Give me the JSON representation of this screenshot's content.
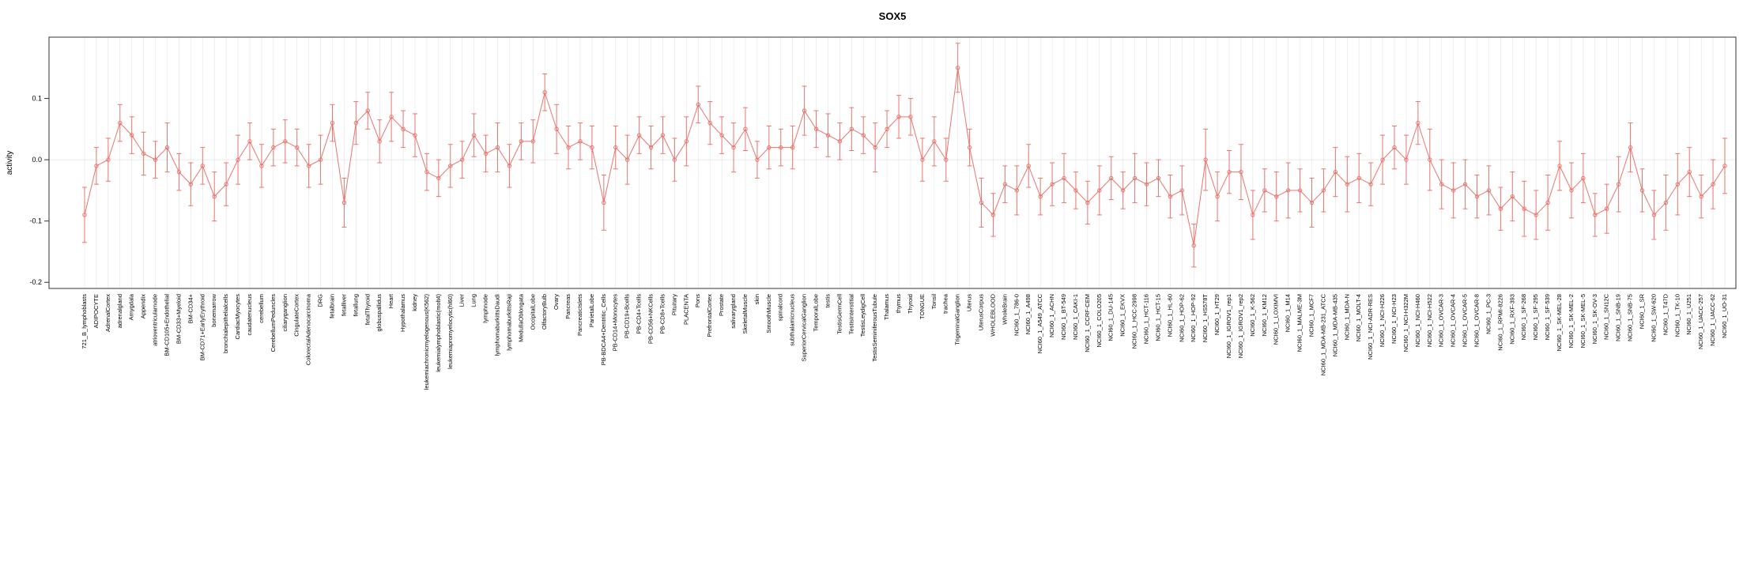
{
  "chart_data": {
    "type": "line",
    "title": "SOX5",
    "ylabel": "activity",
    "xlabel": "",
    "ylim": [
      -0.21,
      0.2
    ],
    "yticks": [
      -0.2,
      -0.1,
      0.0,
      0.1
    ],
    "ytick_labels": [
      "-0.2",
      "-0.1",
      "0.0",
      "0.1"
    ],
    "grid": "vertical-per-category-plus-zero-line",
    "legend": "none",
    "marker": "open-circle",
    "error_bars": true,
    "series_color": "#e9756e",
    "grid_color": "#e3e3e3",
    "axis_color": "#333333",
    "categories": [
      "721_B_lymphoblasts",
      "ADIPOCYTE",
      "AdrenalCortex",
      "adrenalgland",
      "Amygdala",
      "Appendix",
      "atrioventricularnode",
      "BM-CD105+Endothelial",
      "BM-CD33+Myeloid",
      "BM-CD34+",
      "BM-CD71+EarlyErythroid",
      "bonemarrow",
      "bronchialepithelialcells",
      "CardiacMyocytes",
      "caudatenucleus",
      "cerebellum",
      "CerebellumPeduncles",
      "ciliaryganglion",
      "CingulateCortex",
      "ColorectalAdenocarcinoma",
      "DRG",
      "fetalbrain",
      "fetalliver",
      "fetallung",
      "fetalThyroid",
      "globuspallidus",
      "Heart",
      "Hypothalamus",
      "kidney",
      "leukemiachronicmyelogenous(K562)",
      "leukemialymphoblastic(molt4)",
      "leukemiapromyelocytic(hl60)",
      "Liver",
      "Lung",
      "lymphnode",
      "lymphomaburkittsDaudi",
      "lymphomaburkittsRaji",
      "MedullaOblongata",
      "OccipitalLobe",
      "OlfactoryBulb",
      "Ovary",
      "Pancreas",
      "PancreaticIslets",
      "ParietalLobe",
      "PB-BDCA4+Dentritic_Cells",
      "PB-CD14+Monocytes",
      "PB-CD19+Bcells",
      "PB-CD4+Tcells",
      "PB-CD56+NKCells",
      "PB-CD8+Tcells",
      "Pituitary",
      "PLACENTA",
      "Pons",
      "PrefrontalCortex",
      "Prostate",
      "salivarygland",
      "SkeletalMuscle",
      "skin",
      "SmoothMuscle",
      "spinalcord",
      "subthalamicnucleus",
      "SuperiorCervicalGanglion",
      "TemporalLobe",
      "testis",
      "TestisGermCell",
      "TestisInterstitial",
      "TestisLeydigCell",
      "TestisSeminiferousTubule",
      "Thalamus",
      "thymus",
      "Thyroid",
      "TONGUE",
      "Tonsil",
      "trachea",
      "TrigeminalGanglion",
      "Uterus",
      "UterusCorpus",
      "WHOLEBLOOD",
      "WholeBrain",
      "NCI60_1_786-0",
      "NCI60_1_A498",
      "NCI60_1_A549_ATCC",
      "NCI60_1_ACHN",
      "NCI60_1_BT-549",
      "NCI60_1_CAKI-1",
      "NCI60_1_CCRF-CEM",
      "NCI60_1_COLO205",
      "NCI60_1_DU-145",
      "NCI60_1_EKVX",
      "NCI60_1_HCC-2998",
      "NCI60_1_HCT-116",
      "NCI60_1_HCT-15",
      "NCI60_1_HL-60",
      "NCI60_1_HOP-62",
      "NCI60_1_HOP-92",
      "NCI60_1_HS578T",
      "NCI60_1_HT29",
      "NCI60_1_IGROV1_rep1",
      "NCI60_1_IGROV1_rep2",
      "NCI60_1_K-562",
      "NCI60_1_KM12",
      "NCI60_1_LOXIMVI",
      "NCI60_1_M14",
      "NCI60_1_MALME-3M",
      "NCI60_1_MCF7",
      "NCI60_1_MDA-MB-231_ATCC",
      "NCI60_1_MDA-MB-435",
      "NCI60_1_MDA-N",
      "NCI60_1_MOLT-4",
      "NCI60_1_NCI-ADR-RES",
      "NCI60_1_NCI-H226",
      "NCI60_1_NCI-H23",
      "NCI60_1_NCI-H322M",
      "NCI60_1_NCI-H460",
      "NCI60_1_NCI-H522",
      "NCI60_1_OVCAR-3",
      "NCI60_1_OVCAR-4",
      "NCI60_1_OVCAR-5",
      "NCI60_1_OVCAR-8",
      "NCI60_1_PC-3",
      "NCI60_1_RPMI-8226",
      "NCI60_1_RXF-393",
      "NCI60_1_SF-268",
      "NCI60_1_SF-295",
      "NCI60_1_SF-539",
      "NCI60_1_SK-MEL-28",
      "NCI60_1_SK-MEL-2",
      "NCI60_1_SK-MEL-5",
      "NCI60_1_SK-OV-3",
      "NCI60_1_SN12C",
      "NCI60_1_SNB-19",
      "NCI60_1_SNB-75",
      "NCI60_1_SR",
      "NCI60_1_SW-620",
      "NCI60_1_T47D",
      "NCI60_1_TK-10",
      "NCI60_1_U251",
      "NCI60_1_UACC-257",
      "NCI60_1_UACC-62",
      "NCI60_1_UO-31"
    ],
    "values": [
      -0.09,
      -0.01,
      0.0,
      0.06,
      0.04,
      0.01,
      0.0,
      0.02,
      -0.02,
      -0.04,
      -0.01,
      -0.06,
      -0.04,
      0.0,
      0.03,
      -0.01,
      0.02,
      0.03,
      0.02,
      -0.01,
      0.0,
      0.06,
      -0.07,
      0.06,
      0.08,
      0.03,
      0.07,
      0.05,
      0.04,
      -0.02,
      -0.03,
      -0.01,
      0.0,
      0.04,
      0.01,
      0.02,
      -0.01,
      0.03,
      0.03,
      0.11,
      0.05,
      0.02,
      0.03,
      0.02,
      -0.07,
      0.02,
      0.0,
      0.04,
      0.02,
      0.04,
      0.0,
      0.03,
      0.09,
      0.06,
      0.04,
      0.02,
      0.05,
      0.0,
      0.02,
      0.02,
      0.02,
      0.08,
      0.05,
      0.04,
      0.03,
      0.05,
      0.04,
      0.02,
      0.05,
      0.07,
      0.07,
      0.0,
      0.03,
      0.0,
      0.15,
      0.02,
      -0.07,
      -0.09,
      -0.04,
      -0.05,
      -0.01,
      -0.06,
      -0.04,
      -0.03,
      -0.05,
      -0.07,
      -0.05,
      -0.03,
      -0.05,
      -0.03,
      -0.04,
      -0.03,
      -0.06,
      -0.05,
      -0.14,
      0.0,
      -0.06,
      -0.02,
      -0.02,
      -0.09,
      -0.05,
      -0.06,
      -0.05,
      -0.05,
      -0.07,
      -0.05,
      -0.02,
      -0.04,
      -0.03,
      -0.04,
      0.0,
      0.02,
      0.0,
      0.06,
      0.0,
      -0.04,
      -0.05,
      -0.04,
      -0.06,
      -0.05,
      -0.08,
      -0.06,
      -0.08,
      -0.09,
      -0.07,
      -0.01,
      -0.05,
      -0.03,
      -0.09,
      -0.08,
      -0.04,
      0.02,
      -0.05,
      -0.09,
      -0.07,
      -0.04,
      -0.02,
      -0.06,
      -0.04,
      -0.01
    ],
    "errors": [
      0.045,
      0.03,
      0.035,
      0.03,
      0.03,
      0.035,
      0.03,
      0.04,
      0.03,
      0.035,
      0.03,
      0.04,
      0.035,
      0.04,
      0.03,
      0.035,
      0.03,
      0.035,
      0.03,
      0.035,
      0.04,
      0.03,
      0.04,
      0.035,
      0.03,
      0.035,
      0.04,
      0.03,
      0.035,
      0.03,
      0.03,
      0.035,
      0.03,
      0.035,
      0.03,
      0.04,
      0.035,
      0.03,
      0.035,
      0.03,
      0.04,
      0.035,
      0.03,
      0.035,
      0.045,
      0.035,
      0.04,
      0.03,
      0.035,
      0.03,
      0.035,
      0.04,
      0.03,
      0.035,
      0.03,
      0.04,
      0.035,
      0.03,
      0.035,
      0.03,
      0.035,
      0.04,
      0.03,
      0.035,
      0.03,
      0.035,
      0.03,
      0.04,
      0.03,
      0.035,
      0.03,
      0.035,
      0.04,
      0.035,
      0.04,
      0.03,
      0.04,
      0.035,
      0.03,
      0.04,
      0.035,
      0.03,
      0.035,
      0.04,
      0.03,
      0.035,
      0.04,
      0.035,
      0.03,
      0.04,
      0.035,
      0.03,
      0.035,
      0.04,
      0.035,
      0.05,
      0.04,
      0.035,
      0.045,
      0.04,
      0.035,
      0.04,
      0.045,
      0.035,
      0.04,
      0.035,
      0.04,
      0.045,
      0.04,
      0.035,
      0.04,
      0.035,
      0.04,
      0.035,
      0.05,
      0.04,
      0.045,
      0.04,
      0.035,
      0.04,
      0.035,
      0.04,
      0.045,
      0.04,
      0.045,
      0.04,
      0.045,
      0.04,
      0.035,
      0.04,
      0.045,
      0.04,
      0.035,
      0.04,
      0.045,
      0.05,
      0.04,
      0.035,
      0.04,
      0.045
    ]
  }
}
